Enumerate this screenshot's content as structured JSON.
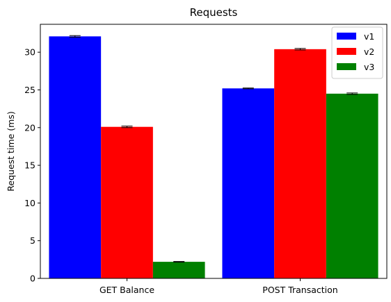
{
  "chart_data": {
    "type": "bar",
    "title": "Requests",
    "xlabel": "",
    "ylabel": "Request time (ms)",
    "categories": [
      "GET Balance",
      "POST Transaction"
    ],
    "series": [
      {
        "name": "v1",
        "color": "#0000ff",
        "values": [
          32.1,
          25.2
        ],
        "errors": [
          0.1,
          0.05
        ]
      },
      {
        "name": "v2",
        "color": "#ff0000",
        "values": [
          20.1,
          30.4
        ],
        "errors": [
          0.1,
          0.1
        ]
      },
      {
        "name": "v3",
        "color": "#008000",
        "values": [
          2.2,
          24.5
        ],
        "errors": [
          0.05,
          0.1
        ]
      }
    ],
    "ylim": [
      0,
      33.7
    ],
    "yticks": [
      0,
      5,
      10,
      15,
      20,
      25,
      30
    ],
    "grid": false,
    "legend_position": "top-right"
  }
}
